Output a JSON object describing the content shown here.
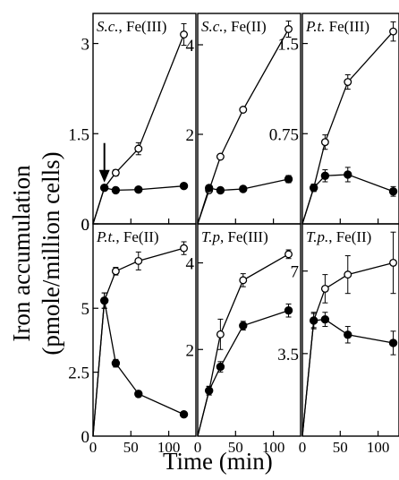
{
  "figure": {
    "ylabel_line1": "Iron accumulation",
    "ylabel_line2": "(pmole/million cells)",
    "xlabel": "Time (min)"
  },
  "chart_data": {
    "type": "line",
    "x_ticks": [
      0,
      50,
      100
    ],
    "xlim": [
      0,
      130
    ],
    "series_styles": {
      "open": "open circles",
      "filled": "filled circles"
    },
    "arrow_annotation": {
      "panel": 0,
      "x": 15,
      "direction": "down"
    },
    "panels": [
      {
        "label_italic": "S.c.",
        "label_rest": ", Fe(III)",
        "ylim": [
          0,
          3.5
        ],
        "yticks": [
          0,
          1.5,
          3
        ],
        "ytick_labels": [
          "0",
          "1.5",
          "3"
        ],
        "series": [
          {
            "style": "open",
            "x": [
              0,
              15,
              30,
              60,
              120
            ],
            "y": [
              0,
              0.6,
              0.85,
              1.25,
              3.15
            ],
            "err": [
              0,
              0.03,
              0.05,
              0.1,
              0.18
            ]
          },
          {
            "style": "filled",
            "x": [
              0,
              15,
              30,
              60,
              120
            ],
            "y": [
              0,
              0.6,
              0.56,
              0.57,
              0.63
            ],
            "err": [
              0,
              0.03,
              0.03,
              0.03,
              0.03
            ]
          }
        ]
      },
      {
        "label_italic": "S.c.",
        "label_rest": ", Fe(II)",
        "ylim": [
          0,
          4.7
        ],
        "yticks": [
          2,
          4
        ],
        "ytick_labels": [
          "2",
          "4"
        ],
        "series": [
          {
            "style": "open",
            "x": [
              0,
              15,
              30,
              60,
              120
            ],
            "y": [
              0,
              0.75,
              1.5,
              2.55,
              4.35
            ],
            "err": [
              0,
              0.05,
              0.05,
              0.05,
              0.18
            ]
          },
          {
            "style": "filled",
            "x": [
              0,
              15,
              30,
              60,
              120
            ],
            "y": [
              0,
              0.8,
              0.75,
              0.78,
              1.0
            ],
            "err": [
              0,
              0.05,
              0.05,
              0.05,
              0.08
            ]
          }
        ]
      },
      {
        "label_italic": "P.t.",
        "label_rest": " Fe(III)",
        "ylim": [
          0,
          1.75
        ],
        "yticks": [
          0.75,
          1.5
        ],
        "ytick_labels": [
          "0.75",
          "1.5"
        ],
        "series": [
          {
            "style": "open",
            "x": [
              0,
              15,
              30,
              60,
              120
            ],
            "y": [
              0,
              0.3,
              0.68,
              1.18,
              1.6
            ],
            "err": [
              0,
              0.03,
              0.06,
              0.06,
              0.08
            ]
          },
          {
            "style": "filled",
            "x": [
              0,
              15,
              30,
              60,
              120
            ],
            "y": [
              0,
              0.3,
              0.4,
              0.41,
              0.27
            ],
            "err": [
              0,
              0.03,
              0.05,
              0.06,
              0.04
            ]
          }
        ]
      },
      {
        "label_italic": "P.t.",
        "label_rest": ", Fe(II)",
        "ylim": [
          0,
          8.3
        ],
        "yticks": [
          2.5,
          5
        ],
        "ytick_labels": [
          "2.5",
          "5"
        ],
        "series": [
          {
            "style": "open",
            "x": [
              0,
              15,
              30,
              60,
              120
            ],
            "y": [
              0,
              5.3,
              6.45,
              6.85,
              7.35
            ],
            "err": [
              0,
              0.3,
              0.15,
              0.35,
              0.25
            ]
          },
          {
            "style": "filled",
            "x": [
              0,
              15,
              30,
              60,
              120
            ],
            "y": [
              0,
              5.3,
              2.85,
              1.65,
              0.85
            ],
            "err": [
              0,
              0.3,
              0.15,
              0.12,
              0.08
            ]
          }
        ]
      },
      {
        "label_italic": "T.p",
        "label_rest": ", Fe(III)",
        "ylim": [
          0,
          4.9
        ],
        "yticks": [
          2,
          4
        ],
        "ytick_labels": [
          "2",
          "4"
        ],
        "series": [
          {
            "style": "open",
            "x": [
              0,
              15,
              30,
              60,
              120
            ],
            "y": [
              0,
              1.05,
              2.35,
              3.6,
              4.2
            ],
            "err": [
              0,
              0.1,
              0.35,
              0.15,
              0.1
            ]
          },
          {
            "style": "filled",
            "x": [
              0,
              15,
              30,
              60,
              120
            ],
            "y": [
              0,
              1.05,
              1.6,
              2.55,
              2.9
            ],
            "err": [
              0,
              0.1,
              0.12,
              0.1,
              0.15
            ]
          }
        ]
      },
      {
        "label_italic": "T.p.",
        "label_rest": ", Fe(II)",
        "ylim": [
          0,
          9.0
        ],
        "yticks": [
          3.5,
          7
        ],
        "ytick_labels": [
          "3.5",
          "7"
        ],
        "series": [
          {
            "style": "open",
            "x": [
              0,
              15,
              30,
              60,
              120
            ],
            "y": [
              0,
              4.9,
              6.25,
              6.85,
              7.35
            ],
            "err": [
              0,
              0.35,
              0.6,
              0.8,
              1.3
            ]
          },
          {
            "style": "filled",
            "x": [
              0,
              15,
              30,
              60,
              120
            ],
            "y": [
              0,
              4.9,
              4.95,
              4.3,
              3.95
            ],
            "err": [
              0,
              0.3,
              0.3,
              0.35,
              0.5
            ]
          }
        ]
      }
    ]
  }
}
